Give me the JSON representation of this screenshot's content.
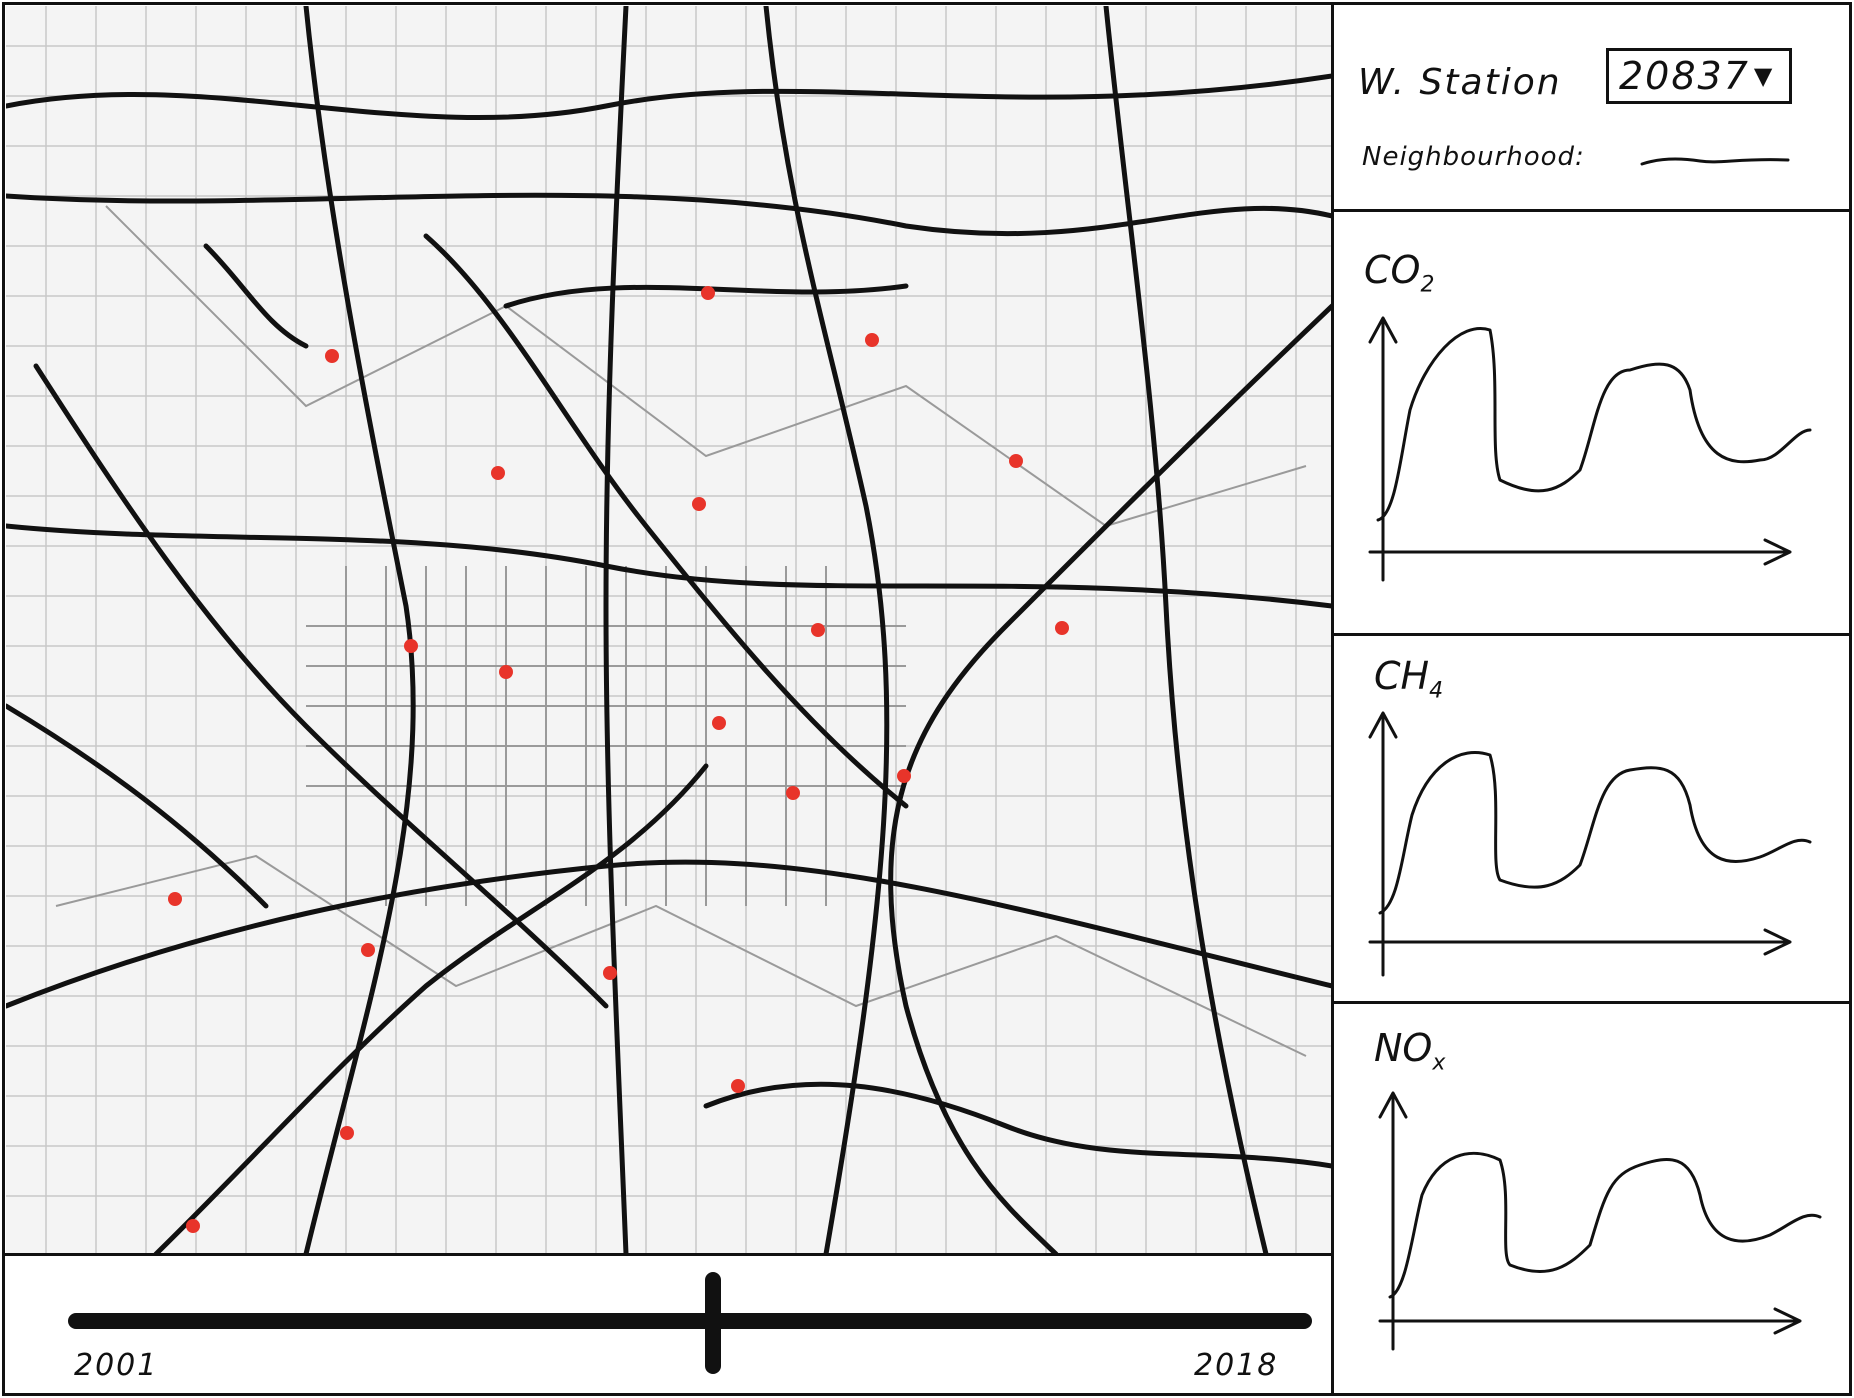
{
  "station_panel": {
    "label": "W. Station",
    "selected_station": "20837",
    "neighbourhood_label": "Neighbourhood:"
  },
  "charts": [
    {
      "title": "CO",
      "subscript": "2"
    },
    {
      "title": "CH",
      "subscript": "4"
    },
    {
      "title": "NO",
      "subscript": "x"
    }
  ],
  "timeline": {
    "start_label": "2001",
    "end_label": "2018"
  },
  "colors": {
    "station_marker": "#e8342a"
  }
}
